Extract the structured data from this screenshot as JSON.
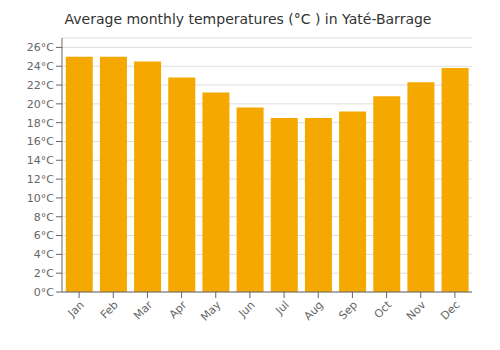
{
  "chart_data": {
    "type": "bar",
    "title": "Average monthly temperatures (°C ) in Yaté-Barrage",
    "categories": [
      "Jan",
      "Feb",
      "Mar",
      "Apr",
      "May",
      "Jun",
      "Jul",
      "Aug",
      "Sep",
      "Oct",
      "Nov",
      "Dec"
    ],
    "values": [
      25.0,
      25.0,
      24.5,
      22.8,
      21.2,
      19.6,
      18.5,
      18.5,
      19.2,
      20.8,
      22.3,
      23.8
    ],
    "color": "#F5A800",
    "ylim": [
      0,
      27
    ],
    "yticks": [
      {
        "value": 0,
        "label": "0°C"
      },
      {
        "value": 2,
        "label": "2°C"
      },
      {
        "value": 4,
        "label": "4°C"
      },
      {
        "value": 6,
        "label": "6°C"
      },
      {
        "value": 8,
        "label": "8°C"
      },
      {
        "value": 10,
        "label": "10°C"
      },
      {
        "value": 12,
        "label": "12°C"
      },
      {
        "value": 14,
        "label": "14°C"
      },
      {
        "value": 16,
        "label": "16°C"
      },
      {
        "value": 18,
        "label": "18°C"
      },
      {
        "value": 20,
        "label": "20°C"
      },
      {
        "value": 22,
        "label": "22°C"
      },
      {
        "value": 24,
        "label": "24°C"
      },
      {
        "value": 26,
        "label": "26°C"
      }
    ],
    "grid": true
  }
}
